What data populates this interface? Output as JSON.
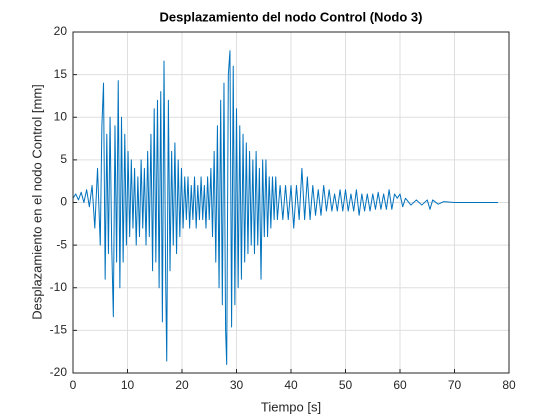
{
  "chart_data": {
    "type": "line",
    "title": "Desplazamiento del nodo Control (Nodo 3)",
    "xlabel": "Tiempo [s]",
    "ylabel": "Desplazamiento en el nodo Control [mm]",
    "xlim": [
      0,
      80
    ],
    "xticks": [
      0,
      10,
      20,
      30,
      40,
      50,
      60,
      70,
      80
    ],
    "ylim": [
      -20,
      20
    ],
    "yticks": [
      -20,
      -15,
      -10,
      -5,
      0,
      5,
      10,
      15,
      20
    ],
    "grid": true,
    "series": [
      {
        "color": "#0072bd",
        "x": [
          0,
          0.5,
          1,
          1.5,
          2,
          2.5,
          3,
          3.5,
          4,
          4.5,
          5,
          5.3,
          5.6,
          5.9,
          6.2,
          6.5,
          6.8,
          7.1,
          7.4,
          7.7,
          8,
          8.3,
          8.6,
          8.9,
          9.2,
          9.5,
          9.8,
          10.1,
          10.4,
          10.7,
          11,
          11.3,
          11.6,
          11.9,
          12.2,
          12.5,
          12.8,
          13.1,
          13.4,
          13.7,
          14,
          14.3,
          14.6,
          14.9,
          15.2,
          15.5,
          15.8,
          16.1,
          16.4,
          16.7,
          17,
          17.2,
          17.5,
          17.8,
          18.1,
          18.4,
          18.7,
          19,
          19.3,
          19.6,
          19.9,
          20.2,
          20.5,
          20.8,
          21.1,
          21.4,
          21.7,
          22,
          22.3,
          22.6,
          22.9,
          23.2,
          23.5,
          23.8,
          24.1,
          24.4,
          24.7,
          25,
          25.3,
          25.6,
          25.9,
          26.2,
          26.5,
          26.8,
          27.1,
          27.4,
          27.7,
          28,
          28.2,
          28.5,
          28.8,
          29.1,
          29.4,
          29.7,
          30,
          30.3,
          30.6,
          30.9,
          31.2,
          31.5,
          31.8,
          32.1,
          32.4,
          32.7,
          33,
          33.3,
          33.6,
          33.9,
          34.2,
          34.5,
          34.8,
          35.1,
          35.4,
          35.7,
          36,
          36.3,
          36.6,
          36.9,
          37.2,
          37.5,
          38,
          38.5,
          39,
          39.5,
          40,
          40.5,
          41,
          41.5,
          42,
          42.5,
          43,
          43.5,
          44,
          44.5,
          45,
          45.5,
          46,
          46.5,
          47,
          47.5,
          48,
          48.5,
          49,
          49.5,
          50,
          50.5,
          51,
          51.5,
          52,
          52.5,
          53,
          53.5,
          54,
          54.5,
          55,
          55.5,
          56,
          56.5,
          57,
          57.5,
          58,
          58.5,
          59,
          59.5,
          60,
          60.5,
          61,
          62,
          63,
          64,
          65,
          65.5,
          66,
          67,
          68,
          70,
          72,
          75,
          78
        ],
        "values": [
          0.5,
          1,
          0.3,
          1.2,
          0,
          1.5,
          -0.5,
          2,
          -3,
          4,
          -5,
          9,
          14,
          -9,
          8,
          -6,
          10,
          -5,
          -13.4,
          9,
          -7,
          14.3,
          -10,
          10,
          -7,
          8,
          -5,
          6,
          -4,
          5,
          -3,
          4,
          -5,
          3,
          -4,
          5,
          -3,
          4,
          -5,
          6,
          -4,
          8,
          -8,
          11,
          -7,
          12,
          -10,
          13,
          -14,
          16.6,
          -9,
          -18.6,
          12,
          -8,
          6,
          -5,
          7,
          -6,
          5,
          -4,
          4,
          -3,
          3,
          -2,
          3,
          -3,
          2,
          -2,
          3,
          -3,
          2,
          -2,
          3,
          -2,
          2,
          -3,
          3,
          -2,
          4,
          -4,
          6,
          -7,
          9,
          -10,
          12,
          -12,
          14,
          -15,
          -19,
          15,
          17.8,
          -14.6,
          16,
          -12,
          11,
          -10,
          9,
          -9,
          8,
          -7,
          7,
          -6,
          6,
          -5,
          5,
          -6,
          6,
          -5,
          4,
          -9,
          5,
          -4,
          5,
          -4,
          3,
          -3,
          3,
          -2,
          3,
          -2,
          2,
          -2,
          2,
          -2,
          2,
          -3,
          2,
          -2,
          4,
          -2,
          3,
          -2,
          2,
          -1.5,
          1.5,
          -1.5,
          2,
          -1,
          1.5,
          -1,
          1,
          -1,
          1.5,
          -1,
          1.5,
          -1,
          1,
          -1,
          1.5,
          -1.5,
          1,
          -1,
          1,
          -1,
          1,
          -0.8,
          1.2,
          -0.8,
          1,
          -0.8,
          1.5,
          -0.8,
          1,
          0.5,
          1,
          -0.5,
          0.5,
          -0.3,
          0.3,
          -0.3,
          0.3,
          -0.8,
          0.3,
          -0.2,
          0.1,
          0,
          0,
          0,
          0
        ]
      }
    ]
  }
}
